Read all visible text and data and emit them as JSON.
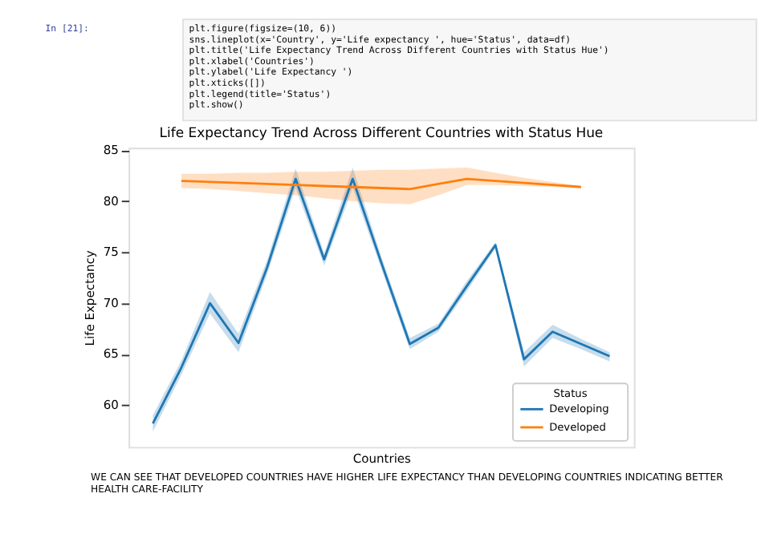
{
  "chart_data": {
    "type": "line",
    "title": "Life Expectancy Trend Across Different Countries with Status Hue",
    "xlabel": "Countries",
    "ylabel": "Life Expectancy",
    "legend_title": "Status",
    "legend": "bottom right",
    "grid": false,
    "tick_labels": "y",
    "line_style": "solid",
    "marker": "none",
    "categories": [
      null,
      null,
      null,
      null,
      null,
      null,
      null,
      null,
      null,
      null,
      null,
      null,
      null,
      null,
      null,
      null,
      null
    ],
    "ylim": [
      55.9,
      85.25
    ],
    "yticks": [
      60,
      65,
      70,
      75,
      80,
      85
    ],
    "series": [
      {
        "name": "Developing",
        "color": "#1f77b4",
        "values": [
          58.2,
          63.7,
          70.0,
          66.1,
          73.5,
          82.2,
          74.3,
          82.2,
          74.0,
          66.0,
          67.6,
          71.7,
          75.7,
          64.5,
          67.2,
          66.0,
          64.8
        ],
        "lower": [
          57.4,
          63.0,
          69.0,
          65.2,
          72.8,
          81.3,
          73.7,
          81.3,
          73.4,
          65.5,
          67.2,
          71.2,
          75.4,
          63.8,
          66.6,
          65.5,
          64.3
        ],
        "upper": [
          59.0,
          64.4,
          71.1,
          67.0,
          74.2,
          83.2,
          74.9,
          83.3,
          74.6,
          66.6,
          68.0,
          72.2,
          76.0,
          65.2,
          67.9,
          66.5,
          65.2
        ]
      },
      {
        "name": "Developed",
        "color": "#ff7f0e",
        "values": [
          null,
          82.0,
          81.9,
          81.8,
          81.7,
          81.6,
          81.5,
          81.4,
          81.3,
          81.2,
          81.7,
          82.2,
          82.0,
          81.8,
          81.6,
          81.4,
          null
        ],
        "lower": [
          null,
          81.3,
          81.2,
          81.0,
          80.8,
          80.6,
          80.3,
          80.0,
          79.8,
          79.7,
          80.6,
          81.6,
          81.6,
          81.5,
          81.4,
          81.3,
          null
        ],
        "upper": [
          null,
          82.7,
          82.7,
          82.8,
          82.8,
          82.9,
          82.9,
          83.0,
          83.1,
          83.1,
          83.2,
          83.3,
          82.8,
          82.3,
          81.9,
          81.5,
          null
        ]
      }
    ],
    "annotations": [
      "In [21]:",
      "plt.figure(figsize=(10, 6))",
      "sns.lineplot(x='Country', y='Life expectancy ', hue='Status', data=df)",
      "plt.title('Life Expectancy Trend Across Different Countries with Status Hue')",
      "plt.xlabel('Countries')",
      "plt.ylabel('Life Expectancy ')",
      "plt.xticks([])",
      "plt.legend(title='Status')",
      "plt.show()",
      "WE CAN SEE THAT DEVELOPED COUNTRIES HAVE HIGHER LIFE EXPECTANCY THAN DEVELOPING COUNTRIES INDICATING BETTER HEALTH CARE-FACILITY"
    ]
  }
}
